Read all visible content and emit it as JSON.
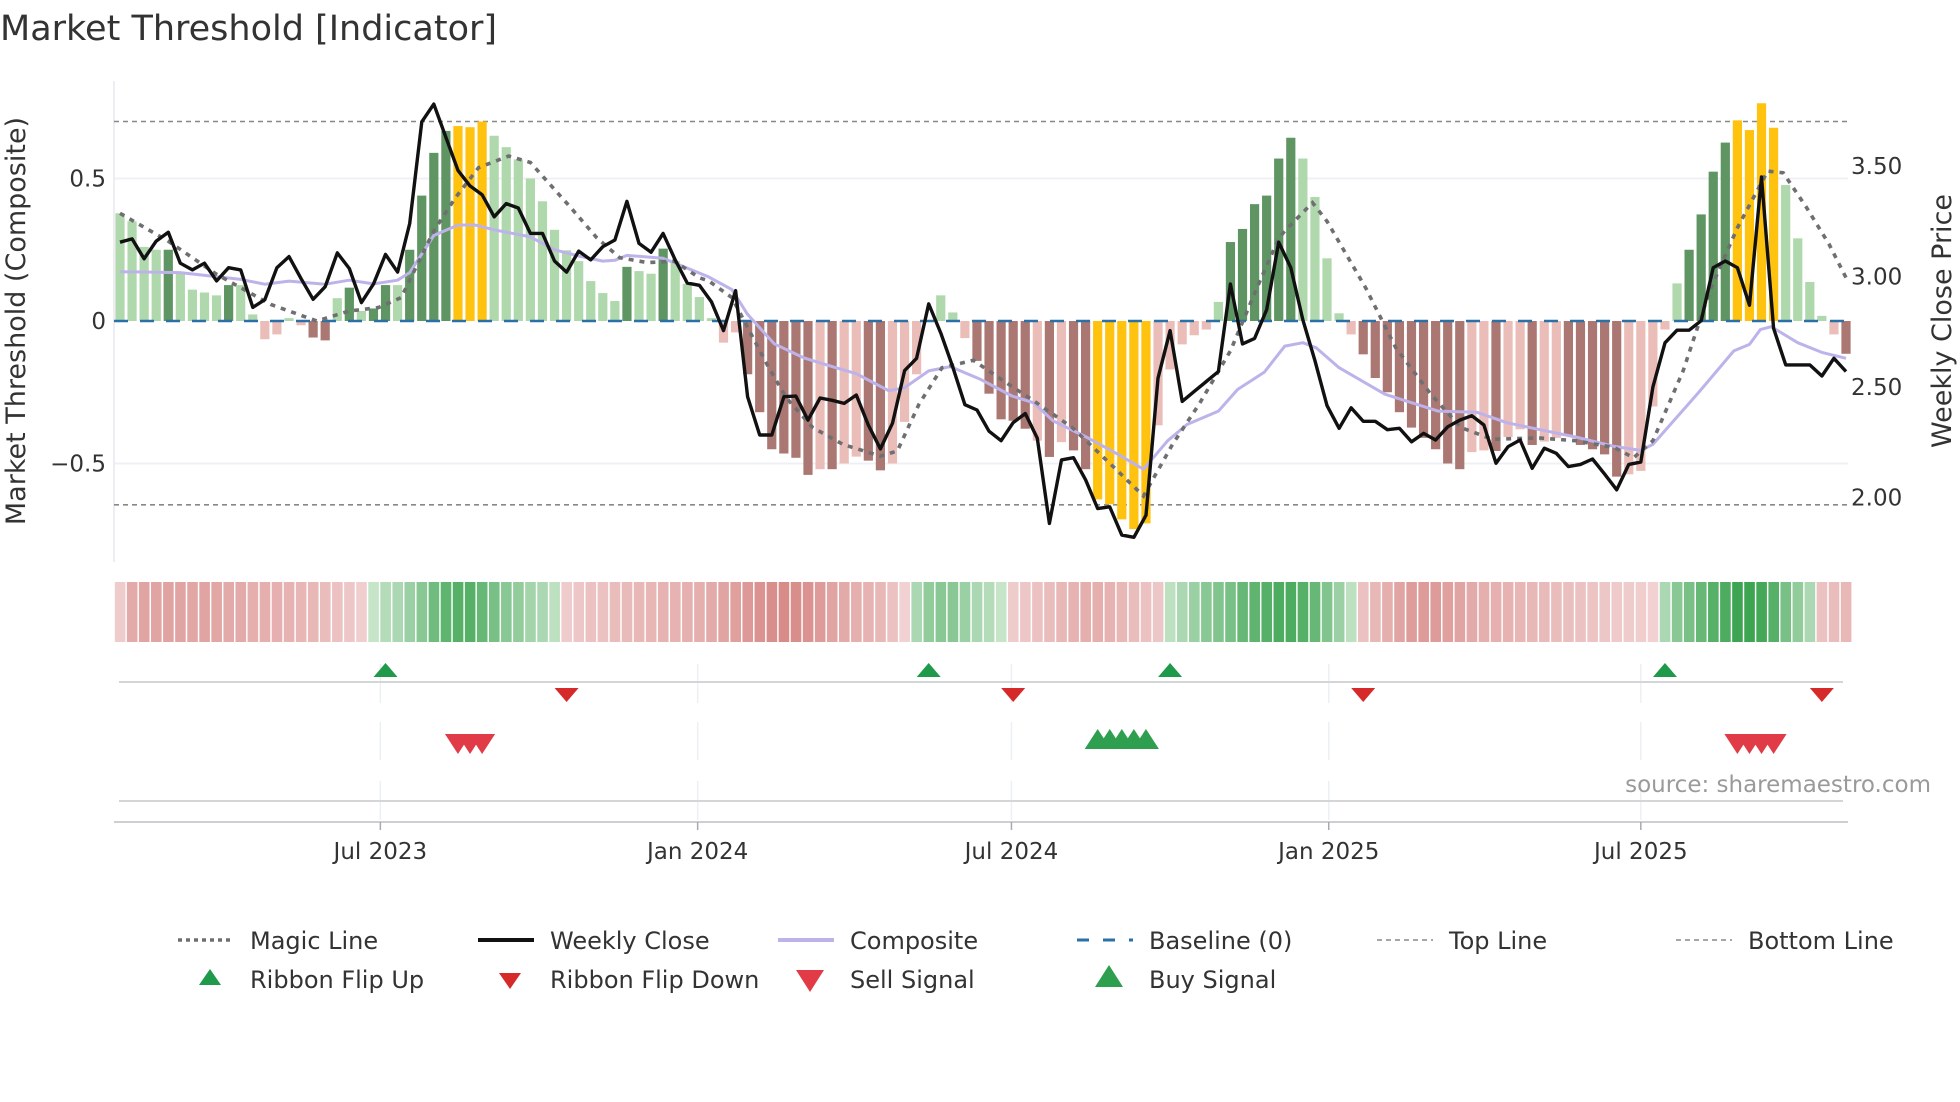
{
  "chart_data": {
    "type": "bar",
    "title": "Market Threshold [Indicator]",
    "ylabel_left": "Market Threshold (Composite)",
    "ylabel_right": "Weekly Close Price",
    "ylim_left": [
      -0.83,
      0.84
    ],
    "ylim_right": [
      1.67,
      3.85
    ],
    "left_ticks": [
      {
        "value": 0.5,
        "label": "0.5"
      },
      {
        "value": 0,
        "label": "0"
      },
      {
        "value": -0.5,
        "label": "−0.5"
      }
    ],
    "right_ticks": [
      {
        "value": 3.5,
        "label": "3.50"
      },
      {
        "value": 3.0,
        "label": "3.00"
      },
      {
        "value": 2.5,
        "label": "2.50"
      },
      {
        "value": 2.0,
        "label": "2.00"
      }
    ],
    "x_start": "2023-01-31",
    "x_step_days": 7,
    "x_ticks": [
      {
        "date": "2023-07-01",
        "label": "Jul 2023"
      },
      {
        "date": "2024-01-01",
        "label": "Jan 2024"
      },
      {
        "date": "2024-07-01",
        "label": "Jul 2024"
      },
      {
        "date": "2025-01-01",
        "label": "Jan 2025"
      },
      {
        "date": "2025-07-01",
        "label": "Jul 2025"
      }
    ],
    "top_line": 0.7,
    "bottom_line": -0.645,
    "baseline": 0,
    "composite_bars": [
      0.378,
      0.35,
      0.26,
      0.25,
      0.25,
      0.17,
      0.11,
      0.1,
      0.09,
      0.126,
      0.126,
      0.023,
      -0.064,
      -0.047,
      0.01,
      -0.015,
      -0.058,
      -0.068,
      0.08,
      0.117,
      0.035,
      0.044,
      0.126,
      0.126,
      0.25,
      0.44,
      0.59,
      0.667,
      0.684,
      0.68,
      0.7,
      0.65,
      0.61,
      0.567,
      0.5,
      0.42,
      0.32,
      0.248,
      0.21,
      0.14,
      0.098,
      0.07,
      0.19,
      0.175,
      0.166,
      0.254,
      0.21,
      0.13,
      0.084,
      0.01,
      -0.076,
      -0.04,
      -0.187,
      -0.32,
      -0.45,
      -0.465,
      -0.48,
      -0.54,
      -0.52,
      -0.52,
      -0.5,
      -0.476,
      -0.49,
      -0.524,
      -0.5,
      -0.354,
      -0.187,
      0,
      0.09,
      0.03,
      -0.06,
      -0.14,
      -0.255,
      -0.345,
      -0.35,
      -0.378,
      -0.42,
      -0.477,
      -0.425,
      -0.454,
      -0.52,
      -0.626,
      -0.643,
      -0.696,
      -0.73,
      -0.71,
      -0.366,
      -0.17,
      -0.082,
      -0.05,
      -0.03,
      0.067,
      0.277,
      0.323,
      0.41,
      0.44,
      0.57,
      0.643,
      0.57,
      0.435,
      0.22,
      0.027,
      -0.047,
      -0.117,
      -0.2,
      -0.25,
      -0.32,
      -0.374,
      -0.41,
      -0.45,
      -0.5,
      -0.52,
      -0.46,
      -0.454,
      -0.456,
      -0.407,
      -0.38,
      -0.435,
      -0.423,
      -0.41,
      -0.4,
      -0.435,
      -0.45,
      -0.468,
      -0.546,
      -0.538,
      -0.526,
      -0.3,
      -0.03,
      0.132,
      0.25,
      0.374,
      0.524,
      0.626,
      0.704,
      0.67,
      0.764,
      0.678,
      0.477,
      0.29,
      0.137,
      0.018,
      -0.047,
      -0.115
    ],
    "bar_styles": "ggggGggggGggrrgrRRgGgGGgGGGGYYYgggggggggggGggGggggrrRRRRRRrRrrRRrrrgggrRRRRRrRrRRYYYYYrrrrrgGGGGGGggggrRRRRRRRRRrrRrrRrrRRRRRrrrrgGGGGYYYYggggrR",
    "bar_style_legend": {
      "G": "strong-positive",
      "g": "weak-positive",
      "R": "strong-negative",
      "r": "weak-negative",
      "Y": "extreme"
    },
    "weekly_close": [
      3.155,
      3.17,
      3.08,
      3.16,
      3.2,
      3.06,
      3.03,
      3.06,
      2.98,
      3.04,
      3.03,
      2.86,
      2.895,
      3.04,
      3.09,
      2.99,
      2.897,
      2.954,
      3.107,
      3.036,
      2.882,
      2.966,
      3.1,
      3.02,
      3.24,
      3.7,
      3.78,
      3.63,
      3.48,
      3.41,
      3.37,
      3.27,
      3.33,
      3.31,
      3.195,
      3.195,
      3.07,
      3.02,
      3.115,
      3.075,
      3.135,
      3.165,
      3.34,
      3.15,
      3.11,
      3.195,
      3.075,
      2.97,
      2.96,
      2.886,
      2.755,
      2.936,
      2.456,
      2.283,
      2.283,
      2.456,
      2.459,
      2.35,
      2.45,
      2.44,
      2.426,
      2.464,
      2.328,
      2.22,
      2.336,
      2.574,
      2.63,
      2.876,
      2.744,
      2.59,
      2.42,
      2.396,
      2.3,
      2.257,
      2.339,
      2.38,
      2.268,
      1.883,
      2.17,
      2.18,
      2.08,
      1.95,
      1.958,
      1.83,
      1.82,
      1.92,
      2.54,
      2.755,
      2.435,
      2.48,
      2.525,
      2.57,
      2.966,
      2.695,
      2.72,
      2.85,
      3.155,
      3.04,
      2.803,
      2.62,
      2.416,
      2.313,
      2.406,
      2.345,
      2.345,
      2.307,
      2.313,
      2.252,
      2.29,
      2.26,
      2.32,
      2.35,
      2.37,
      2.328,
      2.155,
      2.23,
      2.26,
      2.132,
      2.223,
      2.2,
      2.14,
      2.15,
      2.174,
      2.106,
      2.035,
      2.15,
      2.16,
      2.5,
      2.7,
      2.757,
      2.757,
      2.8,
      3.04,
      3.07,
      3.04,
      2.87,
      3.45,
      2.765,
      2.6,
      2.6,
      2.6,
      2.55,
      2.63,
      2.57
    ],
    "composite_line": [
      [
        0,
        0.173
      ],
      [
        5,
        0.17
      ],
      [
        10,
        0.146
      ],
      [
        12,
        0.129
      ],
      [
        14,
        0.14
      ],
      [
        17,
        0.129
      ],
      [
        19,
        0.143
      ],
      [
        21,
        0.13
      ],
      [
        23,
        0.143
      ],
      [
        24,
        0.17
      ],
      [
        26,
        0.3
      ],
      [
        28,
        0.337
      ],
      [
        29.4,
        0.337
      ],
      [
        31,
        0.32
      ],
      [
        34,
        0.295
      ],
      [
        36,
        0.25
      ],
      [
        38,
        0.228
      ],
      [
        40,
        0.21
      ],
      [
        41,
        0.213
      ],
      [
        42,
        0.23
      ],
      [
        45,
        0.22
      ],
      [
        48.7,
        0.156
      ],
      [
        50.7,
        0.11
      ],
      [
        52,
        0.023
      ],
      [
        54.2,
        -0.08
      ],
      [
        56.7,
        -0.13
      ],
      [
        59.3,
        -0.164
      ],
      [
        61,
        -0.185
      ],
      [
        63.7,
        -0.245
      ],
      [
        65,
        -0.234
      ],
      [
        67,
        -0.175
      ],
      [
        68.8,
        -0.16
      ],
      [
        71.3,
        -0.205
      ],
      [
        73.9,
        -0.263
      ],
      [
        75.7,
        -0.287
      ],
      [
        77.3,
        -0.35
      ],
      [
        80.2,
        -0.41
      ],
      [
        82.7,
        -0.468
      ],
      [
        84.8,
        -0.52
      ],
      [
        86.8,
        -0.42
      ],
      [
        88.4,
        -0.363
      ],
      [
        91,
        -0.316
      ],
      [
        92.6,
        -0.24
      ],
      [
        94.8,
        -0.18
      ],
      [
        96.5,
        -0.088
      ],
      [
        98,
        -0.076
      ],
      [
        99.1,
        -0.094
      ],
      [
        101,
        -0.164
      ],
      [
        104.8,
        -0.257
      ],
      [
        109.2,
        -0.316
      ],
      [
        112.4,
        -0.32
      ],
      [
        114.9,
        -0.357
      ],
      [
        117.5,
        -0.38
      ],
      [
        120.6,
        -0.407
      ],
      [
        123.8,
        -0.44
      ],
      [
        126,
        -0.454
      ],
      [
        127,
        -0.433
      ],
      [
        130.8,
        -0.25
      ],
      [
        133.7,
        -0.105
      ],
      [
        135,
        -0.082
      ],
      [
        135.9,
        -0.03
      ],
      [
        136.8,
        -0.02
      ],
      [
        139,
        -0.076
      ],
      [
        141,
        -0.11
      ],
      [
        143,
        -0.131
      ]
    ],
    "magic_line": [
      [
        0,
        0.378
      ],
      [
        4,
        0.28
      ],
      [
        8,
        0.164
      ],
      [
        12.5,
        0.058
      ],
      [
        16.3,
        0
      ],
      [
        19,
        0.035
      ],
      [
        21.4,
        0.047
      ],
      [
        23.3,
        0.082
      ],
      [
        26,
        0.316
      ],
      [
        27.8,
        0.433
      ],
      [
        29.7,
        0.538
      ],
      [
        32.2,
        0.579
      ],
      [
        34,
        0.556
      ],
      [
        37.3,
        0.4
      ],
      [
        39.5,
        0.292
      ],
      [
        41.4,
        0.222
      ],
      [
        43.7,
        0.205
      ],
      [
        45.9,
        0.21
      ],
      [
        48,
        0.152
      ],
      [
        48.8,
        0.14
      ],
      [
        50.7,
        0.082
      ],
      [
        53.6,
        -0.152
      ],
      [
        55.2,
        -0.27
      ],
      [
        57.4,
        -0.374
      ],
      [
        59.9,
        -0.433
      ],
      [
        63,
        -0.474
      ],
      [
        64.4,
        -0.456
      ],
      [
        66.2,
        -0.292
      ],
      [
        68.1,
        -0.164
      ],
      [
        70.7,
        -0.138
      ],
      [
        73.2,
        -0.21
      ],
      [
        75.7,
        -0.28
      ],
      [
        78.9,
        -0.374
      ],
      [
        82.1,
        -0.503
      ],
      [
        84.8,
        -0.614
      ],
      [
        87.2,
        -0.433
      ],
      [
        89.4,
        -0.292
      ],
      [
        92,
        -0.105
      ],
      [
        94.2,
        0.117
      ],
      [
        96,
        0.29
      ],
      [
        96.5,
        0.316
      ],
      [
        98.8,
        0.415
      ],
      [
        100,
        0.35
      ],
      [
        103.2,
        0.117
      ],
      [
        105.7,
        -0.094
      ],
      [
        108.6,
        -0.257
      ],
      [
        111.1,
        -0.374
      ],
      [
        113.7,
        -0.415
      ],
      [
        117.5,
        -0.41
      ],
      [
        120.6,
        -0.42
      ],
      [
        123.8,
        -0.444
      ],
      [
        125.4,
        -0.48
      ],
      [
        127,
        -0.42
      ],
      [
        129.5,
        -0.175
      ],
      [
        131.7,
        0.105
      ],
      [
        134,
        0.327
      ],
      [
        136.5,
        0.526
      ],
      [
        137.8,
        0.52
      ],
      [
        139.7,
        0.4
      ],
      [
        141.6,
        0.269
      ],
      [
        143,
        0.152
      ]
    ],
    "ribbon": [
      -0.2,
      -0.55,
      -0.6,
      -0.6,
      -0.62,
      -0.6,
      -0.58,
      -0.6,
      -0.58,
      -0.55,
      -0.55,
      -0.5,
      -0.5,
      -0.48,
      -0.45,
      -0.42,
      -0.4,
      -0.35,
      -0.3,
      -0.25,
      -0.18,
      0.15,
      0.25,
      0.3,
      0.4,
      0.5,
      0.65,
      0.75,
      0.8,
      0.8,
      0.7,
      0.6,
      0.5,
      0.45,
      0.35,
      0.3,
      0.2,
      -0.2,
      -0.25,
      -0.3,
      -0.3,
      -0.35,
      -0.38,
      -0.4,
      -0.42,
      -0.45,
      -0.45,
      -0.48,
      -0.5,
      -0.55,
      -0.6,
      -0.65,
      -0.72,
      -0.78,
      -0.82,
      -0.85,
      -0.82,
      -0.78,
      -0.7,
      -0.6,
      -0.55,
      -0.5,
      -0.45,
      -0.4,
      -0.3,
      -0.15,
      0.3,
      0.45,
      0.5,
      0.5,
      0.4,
      0.3,
      0.25,
      0.15,
      -0.2,
      -0.25,
      -0.3,
      -0.35,
      -0.4,
      -0.45,
      -0.5,
      -0.5,
      -0.45,
      -0.4,
      -0.35,
      -0.3,
      -0.25,
      0.2,
      0.3,
      0.4,
      0.5,
      0.55,
      0.6,
      0.7,
      0.75,
      0.8,
      0.85,
      0.85,
      0.8,
      0.7,
      0.55,
      0.4,
      0.2,
      -0.3,
      -0.4,
      -0.5,
      -0.6,
      -0.68,
      -0.7,
      -0.7,
      -0.65,
      -0.6,
      -0.55,
      -0.5,
      -0.48,
      -0.45,
      -0.42,
      -0.4,
      -0.38,
      -0.35,
      -0.32,
      -0.3,
      -0.28,
      -0.25,
      -0.22,
      -0.2,
      -0.18,
      -0.15,
      0.3,
      0.5,
      0.6,
      0.7,
      0.8,
      0.85,
      0.95,
      0.95,
      0.9,
      0.8,
      0.6,
      0.45,
      0.3,
      -0.3,
      -0.35,
      -0.4
    ],
    "ribbon_flip_up": [
      22,
      67,
      87,
      128
    ],
    "ribbon_flip_down": [
      37,
      74,
      103,
      141
    ],
    "sell_signal": [
      28,
      29,
      30,
      134,
      135,
      136,
      137
    ],
    "buy_signal": [
      81,
      82,
      83,
      84,
      85
    ],
    "legend": [
      {
        "label": "Magic Line",
        "kind": "magic"
      },
      {
        "label": "Weekly Close",
        "kind": "close"
      },
      {
        "label": "Composite",
        "kind": "composite"
      },
      {
        "label": "Baseline (0)",
        "kind": "baseline"
      },
      {
        "label": "Top Line",
        "kind": "top"
      },
      {
        "label": "Bottom Line",
        "kind": "bottom"
      },
      {
        "label": "Ribbon Flip Up",
        "kind": "flipup"
      },
      {
        "label": "Ribbon Flip Down",
        "kind": "flipdown"
      },
      {
        "label": "Sell Signal",
        "kind": "sell"
      },
      {
        "label": "Buy Signal",
        "kind": "buy"
      }
    ],
    "legend_placement": "bottom",
    "source": "source: sharemaestro.com"
  },
  "colors": {
    "G": "#5f9463",
    "g": "#afd8ac",
    "R": "#ab7773",
    "r": "#ebbdb8",
    "Y": "#ffc20e",
    "close": "#111111",
    "composite": "#bdb3ea",
    "magic": "#6f6f72",
    "baseline": "#2b70a6",
    "guide": "#888888",
    "flip_up": "#1f9a4a",
    "flip_down": "#d62a2a",
    "sell": "#e23b48",
    "buy": "#2e9e4f"
  }
}
